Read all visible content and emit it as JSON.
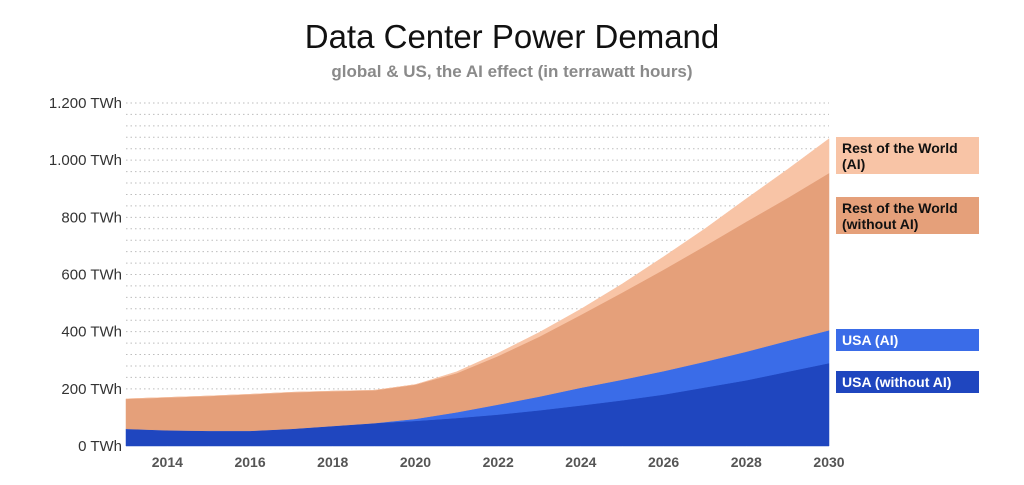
{
  "chart_data": {
    "type": "area",
    "stacked": true,
    "title": "Data Center Power Demand",
    "subtitle": "global & US, the AI effect (in terrawatt hours)",
    "xlabel": "",
    "ylabel": "",
    "x": [
      2013,
      2014,
      2015,
      2016,
      2017,
      2018,
      2019,
      2020,
      2021,
      2022,
      2023,
      2024,
      2025,
      2026,
      2027,
      2028,
      2029,
      2030
    ],
    "xlim": [
      2013,
      2030
    ],
    "ylim": [
      0,
      1200
    ],
    "x_ticks": [
      "2014",
      "2016",
      "2018",
      "2020",
      "2022",
      "2024",
      "2026",
      "2028",
      "2030"
    ],
    "y_ticks": [
      "0 TWh",
      "200 TWh",
      "400 TWh",
      "600 TWh",
      "800 TWh",
      "1.000 TWh",
      "1.200 TWh"
    ],
    "grid": "horizontal dotted",
    "legend_position": "right",
    "series": [
      {
        "name": "USA (without AI)",
        "color": "#1f46bf",
        "values": [
          60,
          55,
          53,
          53,
          60,
          70,
          80,
          88,
          98,
          110,
          125,
          142,
          160,
          180,
          205,
          230,
          260,
          290
        ]
      },
      {
        "name": "USA (AI)",
        "color": "#3a6ce8",
        "values": [
          0,
          0,
          0,
          0,
          0,
          0,
          0,
          7,
          20,
          35,
          48,
          62,
          72,
          82,
          90,
          100,
          108,
          115
        ]
      },
      {
        "name": "Rest of the World (without AI)",
        "color": "#e5a07a",
        "values": [
          105,
          115,
          122,
          128,
          128,
          122,
          115,
          120,
          137,
          170,
          210,
          255,
          305,
          355,
          405,
          455,
          500,
          550
        ]
      },
      {
        "name": "Rest of the World (AI)",
        "color": "#f8c4a6",
        "values": [
          0,
          0,
          0,
          0,
          0,
          0,
          0,
          0,
          5,
          10,
          15,
          20,
          30,
          45,
          60,
          80,
          100,
          120
        ]
      }
    ]
  }
}
